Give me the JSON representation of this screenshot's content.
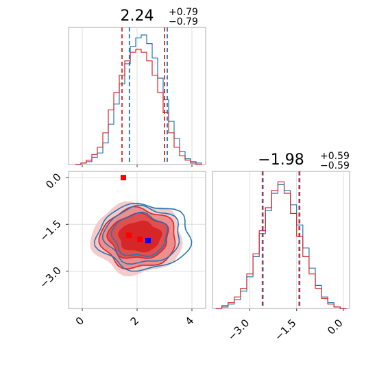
{
  "chart_data": {
    "type": "corner",
    "colors": {
      "red": "#d62728",
      "blue": "#1f77b4",
      "marker_red": "#ff0000",
      "marker_blue": "#0000ff"
    },
    "grid": true,
    "panels": {
      "hist_x": {
        "title_main": "2.24",
        "title_sup": "+0.79",
        "title_sub": "−0.79",
        "xlim": [
          -0.5,
          4.5
        ],
        "quantile_lines_red": [
          1.45,
          3.0
        ],
        "quantile_lines_blue": [
          1.72,
          3.1
        ],
        "bin_centers": [
          -0.15,
          0.05,
          0.25,
          0.45,
          0.65,
          0.85,
          1.05,
          1.25,
          1.45,
          1.65,
          1.85,
          2.05,
          2.25,
          2.45,
          2.65,
          2.85,
          3.05,
          3.25,
          3.45,
          3.65,
          3.85,
          4.05,
          4.25
        ],
        "series": [
          {
            "name": "",
            "color": "blue",
            "values": [
              0,
              0.01,
              0.02,
              0.05,
              0.08,
              0.15,
              0.28,
              0.42,
              0.56,
              0.7,
              0.82,
              0.88,
              0.9,
              0.84,
              0.74,
              0.6,
              0.45,
              0.3,
              0.18,
              0.09,
              0.04,
              0.02,
              0.01
            ]
          },
          {
            "name": "",
            "color": "red",
            "values": [
              0,
              0.01,
              0.03,
              0.07,
              0.12,
              0.22,
              0.38,
              0.5,
              0.62,
              0.72,
              0.78,
              0.8,
              0.78,
              0.72,
              0.62,
              0.5,
              0.36,
              0.22,
              0.12,
              0.06,
              0.03,
              0.01,
              0.0
            ]
          }
        ]
      },
      "hist_y": {
        "title_main": "−1.98",
        "title_sup": "+0.59",
        "title_sub": "−0.59",
        "xlim": [
          -4.2,
          0.2
        ],
        "xticks": [
          "−3.0",
          "−1.5",
          "0.0"
        ],
        "xtick_values": [
          -3.0,
          -1.5,
          0.0
        ],
        "quantile_lines_red": [
          -2.6,
          -1.42
        ],
        "quantile_lines_blue": [
          -2.58,
          -1.4
        ],
        "bin_centers": [
          -4.0,
          -3.8,
          -3.6,
          -3.4,
          -3.2,
          -3.0,
          -2.8,
          -2.6,
          -2.4,
          -2.2,
          -2.0,
          -1.8,
          -1.6,
          -1.4,
          -1.2,
          -1.0,
          -0.8,
          -0.6,
          -0.4,
          -0.2,
          0.0
        ],
        "series": [
          {
            "name": "",
            "color": "blue",
            "values": [
              0.0,
              0.01,
              0.03,
              0.06,
              0.12,
              0.22,
              0.36,
              0.52,
              0.68,
              0.8,
              0.86,
              0.82,
              0.72,
              0.58,
              0.42,
              0.28,
              0.16,
              0.08,
              0.04,
              0.01,
              0.0
            ]
          },
          {
            "name": "",
            "color": "red",
            "values": [
              0.0,
              0.02,
              0.04,
              0.08,
              0.14,
              0.24,
              0.38,
              0.54,
              0.7,
              0.82,
              0.88,
              0.8,
              0.66,
              0.5,
              0.36,
              0.24,
              0.14,
              0.07,
              0.03,
              0.01,
              0.0
            ]
          }
        ]
      },
      "scatter_2d": {
        "xlim": [
          -0.5,
          4.5
        ],
        "ylim": [
          -4.2,
          0.2
        ],
        "xticks": [
          "0",
          "2",
          "4"
        ],
        "xtick_values": [
          0,
          2,
          4
        ],
        "yticks": [
          "0.0",
          "−1.5",
          "−3.0"
        ],
        "ytick_values": [
          0.0,
          -1.5,
          -3.0
        ],
        "contours": [
          {
            "color": "red",
            "center": [
              2.0,
              -1.95
            ],
            "rx": 1.75,
            "ry": 1.2,
            "fill": "#f6caca",
            "line": false
          },
          {
            "color": "red",
            "center": [
              2.05,
              -1.95
            ],
            "rx": 1.45,
            "ry": 1.0,
            "fill": "#ee8f8f",
            "line": true
          },
          {
            "color": "red",
            "center": [
              2.05,
              -1.9
            ],
            "rx": 1.15,
            "ry": 0.75,
            "fill": "#e05050",
            "line": true
          },
          {
            "color": "red",
            "center": [
              2.1,
              -1.9
            ],
            "rx": 0.8,
            "ry": 0.5,
            "fill": "#d62728",
            "line": true
          },
          {
            "color": "blue",
            "center": [
              2.25,
              -1.9
            ],
            "rx": 1.8,
            "ry": 1.1,
            "fill": "none",
            "line": true
          },
          {
            "color": "blue",
            "center": [
              2.2,
              -1.85
            ],
            "rx": 1.45,
            "ry": 0.95,
            "fill": "none",
            "line": true
          },
          {
            "color": "blue",
            "center": [
              2.1,
              -1.85
            ],
            "rx": 1.05,
            "ry": 0.72,
            "fill": "none",
            "line": true
          }
        ],
        "markers": [
          {
            "color": "marker_red",
            "x": 1.5,
            "y": 0.0
          },
          {
            "color": "marker_red",
            "x": 1.7,
            "y": -1.85
          },
          {
            "color": "marker_red",
            "x": 2.1,
            "y": -1.98
          },
          {
            "color": "marker_blue",
            "x": 2.4,
            "y": -2.02
          }
        ]
      }
    }
  }
}
